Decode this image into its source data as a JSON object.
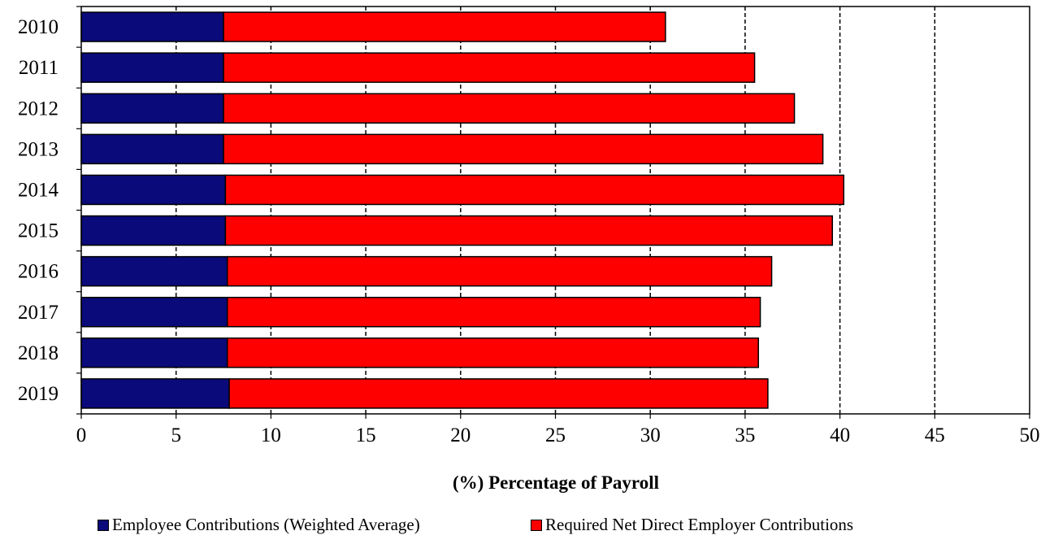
{
  "colors": {
    "employee": "#0a0a7a",
    "employer": "#ff0000",
    "outline": "#000000"
  },
  "chart_data": {
    "type": "bar",
    "orientation": "horizontal",
    "stacked": true,
    "categories": [
      "2010",
      "2011",
      "2012",
      "2013",
      "2014",
      "2015",
      "2016",
      "2017",
      "2018",
      "2019"
    ],
    "series": [
      {
        "name": "Employee Contributions (Weighted Average)",
        "values": [
          7.5,
          7.5,
          7.5,
          7.5,
          7.6,
          7.6,
          7.7,
          7.7,
          7.7,
          7.8
        ]
      },
      {
        "name": "Required Net Direct Employer Contributions",
        "values": [
          23.3,
          28.0,
          30.1,
          31.6,
          32.6,
          32.0,
          28.7,
          28.1,
          28.0,
          28.4
        ]
      }
    ],
    "xlabel": "(%) Percentage of Payroll",
    "ylabel": "",
    "xlim": [
      0,
      50
    ],
    "xticks": [
      "0",
      "5",
      "10",
      "15",
      "20",
      "25",
      "30",
      "35",
      "40",
      "45",
      "50"
    ],
    "grid": "vertical dashed",
    "legend_position": "bottom"
  }
}
